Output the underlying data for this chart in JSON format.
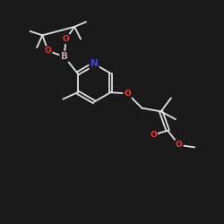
{
  "bg_color": "#1a1a1a",
  "bond_color": "#e0e0e0",
  "atom_colors": {
    "O": "#ff3333",
    "N": "#4444ee",
    "B": "#c8a0a0"
  },
  "font_size_atom": 6.5,
  "line_width": 1.3,
  "figsize": [
    2.5,
    2.5
  ],
  "dpi": 100,
  "xlim": [
    0,
    10
  ],
  "ylim": [
    0,
    10
  ]
}
